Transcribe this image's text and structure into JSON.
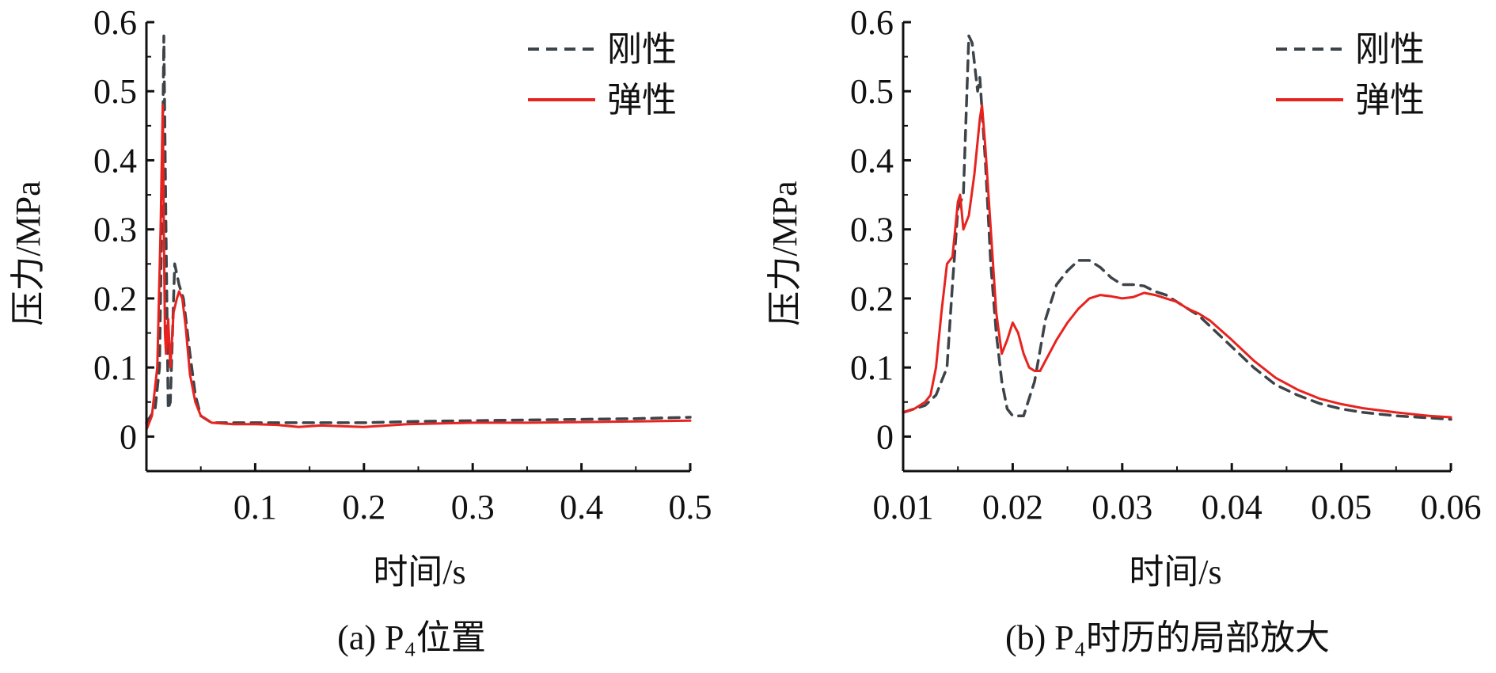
{
  "chart_data": [
    {
      "type": "line",
      "caption": "(a) P₄位置",
      "xlabel": "时间/s",
      "ylabel": "压力/MPa",
      "xlim": [
        0,
        0.5
      ],
      "ylim": [
        -0.05,
        0.6
      ],
      "xticks": [
        0.1,
        0.2,
        0.3,
        0.4,
        0.5
      ],
      "xtick_labels": [
        "0.1",
        "0.2",
        "0.3",
        "0.4",
        "0.5"
      ],
      "yticks": [
        0,
        0.1,
        0.2,
        0.3,
        0.4,
        0.5,
        0.6
      ],
      "ytick_labels": [
        "0",
        "0.1",
        "0.2",
        "0.3",
        "0.4",
        "0.5",
        "0.6"
      ],
      "grid": false,
      "legend_position": "top-right",
      "series": [
        {
          "name": "刚性",
          "style": "dashed",
          "color": "#3d4449",
          "x": [
            0,
            0.008,
            0.012,
            0.014,
            0.016,
            0.018,
            0.02,
            0.022,
            0.026,
            0.03,
            0.034,
            0.04,
            0.045,
            0.05,
            0.06,
            0.08,
            0.1,
            0.15,
            0.2,
            0.25,
            0.3,
            0.35,
            0.4,
            0.45,
            0.5
          ],
          "y": [
            0.02,
            0.04,
            0.1,
            0.3,
            0.58,
            0.3,
            0.04,
            0.05,
            0.25,
            0.22,
            0.2,
            0.12,
            0.06,
            0.03,
            0.02,
            0.02,
            0.02,
            0.02,
            0.02,
            0.022,
            0.023,
            0.024,
            0.025,
            0.026,
            0.028
          ]
        },
        {
          "name": "弹性",
          "style": "solid",
          "color": "#e8231f",
          "x": [
            0,
            0.005,
            0.01,
            0.013,
            0.015,
            0.016,
            0.017,
            0.018,
            0.02,
            0.022,
            0.025,
            0.028,
            0.03,
            0.033,
            0.036,
            0.04,
            0.045,
            0.05,
            0.06,
            0.08,
            0.1,
            0.12,
            0.14,
            0.16,
            0.2,
            0.24,
            0.3,
            0.35,
            0.4,
            0.45,
            0.5
          ],
          "y": [
            0.01,
            0.03,
            0.1,
            0.3,
            0.48,
            0.3,
            0.15,
            0.12,
            0.17,
            0.1,
            0.18,
            0.2,
            0.21,
            0.2,
            0.16,
            0.09,
            0.05,
            0.03,
            0.02,
            0.018,
            0.018,
            0.017,
            0.014,
            0.016,
            0.014,
            0.018,
            0.02,
            0.02,
            0.021,
            0.022,
            0.023
          ]
        }
      ]
    },
    {
      "type": "line",
      "caption": "(b) P₄时历的局部放大",
      "xlabel": "时间/s",
      "ylabel": "压力/MPa",
      "xlim": [
        0.01,
        0.06
      ],
      "ylim": [
        -0.05,
        0.6
      ],
      "xticks": [
        0.01,
        0.02,
        0.03,
        0.04,
        0.05,
        0.06
      ],
      "xtick_labels": [
        "0.01",
        "0.02",
        "0.03",
        "0.04",
        "0.05",
        "0.06"
      ],
      "yticks": [
        0,
        0.1,
        0.2,
        0.3,
        0.4,
        0.5,
        0.6
      ],
      "ytick_labels": [
        "0",
        "0.1",
        "0.2",
        "0.3",
        "0.4",
        "0.5",
        "0.6"
      ],
      "grid": false,
      "legend_position": "top-right",
      "series": [
        {
          "name": "刚性",
          "style": "dashed",
          "color": "#3d4449",
          "x": [
            0.01,
            0.012,
            0.013,
            0.014,
            0.0145,
            0.015,
            0.0155,
            0.016,
            0.0163,
            0.0168,
            0.017,
            0.0175,
            0.018,
            0.0185,
            0.019,
            0.0195,
            0.02,
            0.021,
            0.022,
            0.023,
            0.024,
            0.025,
            0.026,
            0.027,
            0.028,
            0.029,
            0.03,
            0.031,
            0.032,
            0.033,
            0.034,
            0.035,
            0.036,
            0.037,
            0.038,
            0.04,
            0.042,
            0.044,
            0.046,
            0.048,
            0.05,
            0.052,
            0.055,
            0.058,
            0.06
          ],
          "y": [
            0.035,
            0.045,
            0.06,
            0.1,
            0.22,
            0.33,
            0.35,
            0.58,
            0.57,
            0.5,
            0.52,
            0.4,
            0.25,
            0.15,
            0.08,
            0.04,
            0.03,
            0.03,
            0.08,
            0.17,
            0.22,
            0.24,
            0.255,
            0.255,
            0.245,
            0.23,
            0.22,
            0.22,
            0.218,
            0.21,
            0.205,
            0.195,
            0.185,
            0.175,
            0.16,
            0.13,
            0.1,
            0.075,
            0.06,
            0.048,
            0.04,
            0.035,
            0.03,
            0.027,
            0.025
          ]
        },
        {
          "name": "弹性",
          "style": "solid",
          "color": "#e8231f",
          "x": [
            0.01,
            0.011,
            0.012,
            0.0125,
            0.013,
            0.0135,
            0.014,
            0.0145,
            0.015,
            0.0152,
            0.0155,
            0.016,
            0.0165,
            0.017,
            0.0172,
            0.0175,
            0.018,
            0.0185,
            0.019,
            0.0195,
            0.02,
            0.0205,
            0.021,
            0.0215,
            0.022,
            0.0225,
            0.023,
            0.024,
            0.025,
            0.026,
            0.027,
            0.028,
            0.029,
            0.03,
            0.031,
            0.032,
            0.033,
            0.034,
            0.035,
            0.036,
            0.037,
            0.038,
            0.04,
            0.042,
            0.044,
            0.046,
            0.048,
            0.05,
            0.052,
            0.055,
            0.058,
            0.06
          ],
          "y": [
            0.035,
            0.04,
            0.05,
            0.06,
            0.1,
            0.18,
            0.25,
            0.26,
            0.34,
            0.35,
            0.3,
            0.32,
            0.38,
            0.46,
            0.48,
            0.42,
            0.3,
            0.18,
            0.12,
            0.14,
            0.165,
            0.15,
            0.12,
            0.1,
            0.095,
            0.095,
            0.11,
            0.14,
            0.165,
            0.185,
            0.2,
            0.205,
            0.203,
            0.2,
            0.202,
            0.208,
            0.205,
            0.2,
            0.195,
            0.185,
            0.178,
            0.168,
            0.14,
            0.11,
            0.085,
            0.068,
            0.055,
            0.047,
            0.041,
            0.035,
            0.03,
            0.028
          ]
        }
      ]
    }
  ]
}
